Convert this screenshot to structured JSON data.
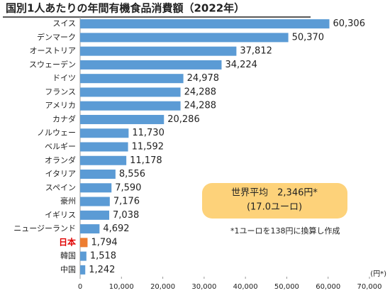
{
  "chart_data": {
    "type": "barh",
    "title": "国別1人あたりの年間有機食品消費額（2022年）",
    "categories": [
      "スイス",
      "デンマーク",
      "オーストリア",
      "スウェーデン",
      "ドイツ",
      "フランス",
      "アメリカ",
      "カナダ",
      "ノルウェー",
      "ベルギー",
      "オランダ",
      "イタリア",
      "スペイン",
      "豪州",
      "イギリス",
      "ニュージーランド",
      "日本",
      "韓国",
      "中国"
    ],
    "values": [
      60306,
      50370,
      37812,
      34224,
      24978,
      24288,
      24288,
      20286,
      11730,
      11592,
      11178,
      8556,
      7590,
      7176,
      7038,
      4692,
      1794,
      1518,
      1242
    ],
    "value_labels": [
      "60,306",
      "50,370",
      "37,812",
      "34,224",
      "24,978",
      "24,288",
      "24,288",
      "20,286",
      "11,730",
      "11,592",
      "11,178",
      "8,556",
      "7,590",
      "7,176",
      "7,038",
      "4,692",
      "1,794",
      "1,518",
      "1,242"
    ],
    "color": "#5b9bd5",
    "colors": [
      "#5b9bd5",
      "#5b9bd5",
      "#5b9bd5",
      "#5b9bd5",
      "#5b9bd5",
      "#5b9bd5",
      "#5b9bd5",
      "#5b9bd5",
      "#5b9bd5",
      "#5b9bd5",
      "#5b9bd5",
      "#5b9bd5",
      "#5b9bd5",
      "#5b9bd5",
      "#5b9bd5",
      "#5b9bd5",
      "#ed7d31",
      "#5b9bd5",
      "#5b9bd5"
    ],
    "highlight_label_color": "#e00000",
    "xlim": [
      0,
      70000
    ],
    "xticks": [
      0,
      {
        "value": 10000,
        "label": "10,000"
      },
      {
        "value": 20000,
        "label": "20,000"
      },
      {
        "value": 30000,
        "label": "30,000"
      },
      {
        "value": 40000,
        "label": "40,000"
      },
      {
        "value": 50000,
        "label": "50,000"
      },
      {
        "value": 60000,
        "label": "60,000"
      },
      {
        "value": 70000,
        "label": "70,000"
      }
    ],
    "unit_label": "(円*)",
    "annotation": {
      "lines": [
        "世界平均　2,346円*",
        "(17.0ユーロ)"
      ],
      "color": "#fdd27a"
    },
    "note": "*1ユーロを138円に換算し作成"
  }
}
